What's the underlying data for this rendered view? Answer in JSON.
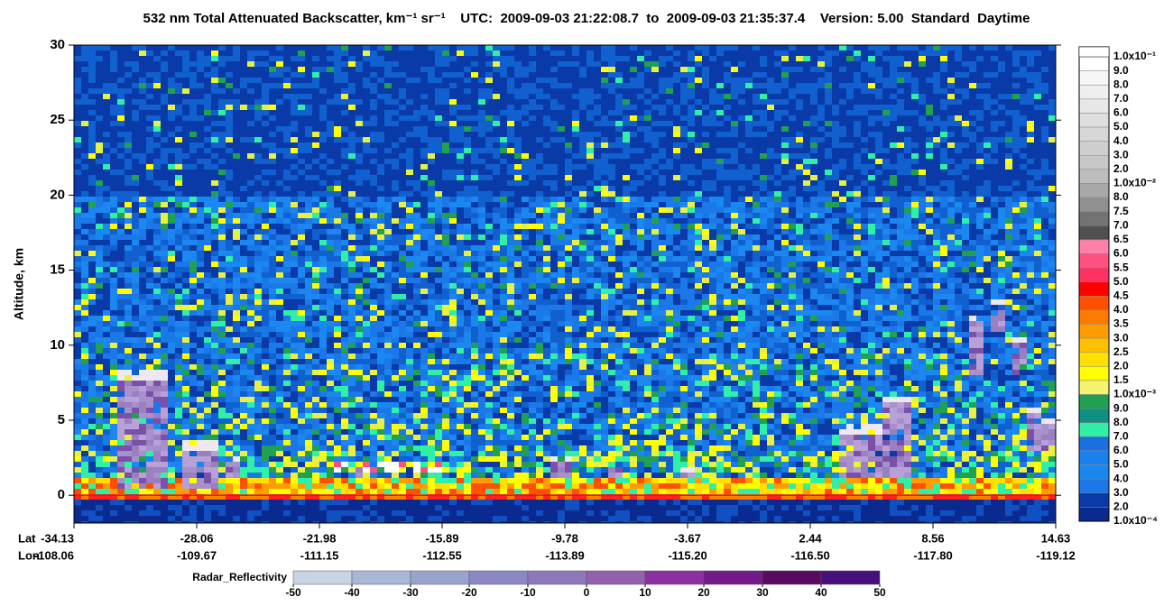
{
  "chart_data": {
    "type": "heatmap",
    "title": "532 nm Total Attenuated Backscatter, km⁻¹ sr⁻¹    UTC:  2009-09-03 21:22:08.7  to  2009-09-03 21:35:37.4    Version: 5.00  Standard  Daytime",
    "y_label": "Altitude, km",
    "ylim": [
      -1.85,
      30
    ],
    "yticks": [
      0,
      5,
      10,
      15,
      20,
      25,
      30
    ],
    "lat_label": "Lat",
    "lon_label": "Lon",
    "lat": [
      -34.13,
      -28.06,
      -21.98,
      -15.89,
      -9.78,
      -3.67,
      2.44,
      8.56,
      14.63
    ],
    "lon": [
      -108.06,
      -109.67,
      -111.15,
      -112.55,
      -113.89,
      {
        "value": -115.2,
        "label": "-115.20"
      },
      {
        "value": -116.5,
        "label": "-116.50"
      },
      {
        "value": -117.8,
        "label": "-117.80"
      },
      -119.12
    ],
    "colorbar": {
      "labels": [
        "1.0x10⁻¹",
        "9.0",
        "8.0",
        "7.0",
        "6.0",
        "5.0",
        "4.0",
        "3.0",
        "2.0",
        "1.0x10⁻²",
        "8.0",
        "7.5",
        "7.0",
        "6.5",
        "6.0",
        "5.5",
        "5.0",
        "4.5",
        "4.0",
        "3.5",
        "3.0",
        "2.5",
        "2.0",
        "1.5",
        "1.0x10⁻³",
        "9.0",
        "8.0",
        "7.0",
        "6.0",
        "5.0",
        "4.0",
        "3.0",
        "2.0",
        "1.0x10⁻⁴"
      ],
      "colors": [
        "#ffffff",
        "#f7f7f7",
        "#efefef",
        "#e7e7e7",
        "#dfdfdf",
        "#d7d7d7",
        "#cfcfcf",
        "#c7c7c7",
        "#bdbdbd",
        "#a8a8a8",
        "#909090",
        "#737373",
        "#505050",
        "#ff80a8",
        "#ff5080",
        "#ff3060",
        "#ff0000",
        "#ff5000",
        "#ff7a00",
        "#ff9c00",
        "#ffc000",
        "#ffe000",
        "#ffff00",
        "#f4f470",
        "#20a050",
        "#109080",
        "#30f0a8",
        "#1a70e0",
        "#1a80f0",
        "#1888f0",
        "#1a78e8",
        "#0a3aa8",
        "#0a2a90"
      ]
    },
    "radar_colorbar": {
      "label": "Radar_Reflectivity",
      "ticks": [
        -50,
        -40,
        -30,
        -20,
        -10,
        0,
        10,
        20,
        30,
        40,
        50
      ],
      "colors": [
        "#c8d4e4",
        "#a8b8d4",
        "#98a4cc",
        "#8c88c4",
        "#8e78bc",
        "#9460b0",
        "#8a30a0",
        "#741a88",
        "#5a0a60",
        "#48107c"
      ]
    }
  }
}
